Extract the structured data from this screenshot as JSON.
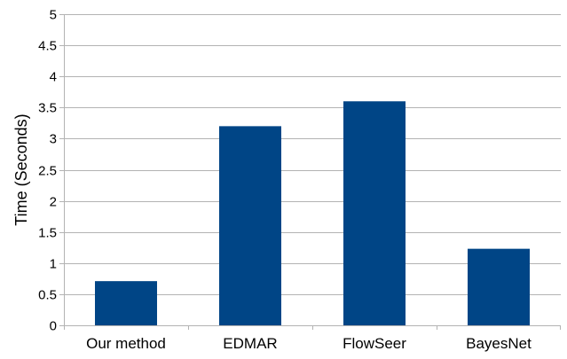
{
  "chart_data": {
    "type": "bar",
    "title": "",
    "xlabel": "",
    "ylabel": "Time (Seconds)",
    "categories": [
      "Our method",
      "EDMAR",
      "FlowSeer",
      "BayesNet"
    ],
    "values": [
      0.71,
      3.2,
      3.6,
      1.23
    ],
    "ylim": [
      0,
      5
    ],
    "yticks": [
      "0",
      "0.5",
      "1",
      "1.5",
      "2",
      "2.5",
      "3",
      "3.5",
      "4",
      "4.5",
      "5"
    ],
    "grid": true,
    "legend": "none",
    "bar_color": "#004586",
    "grid_color": "#b3b3b3",
    "axis_color": "#b3b3b3"
  }
}
